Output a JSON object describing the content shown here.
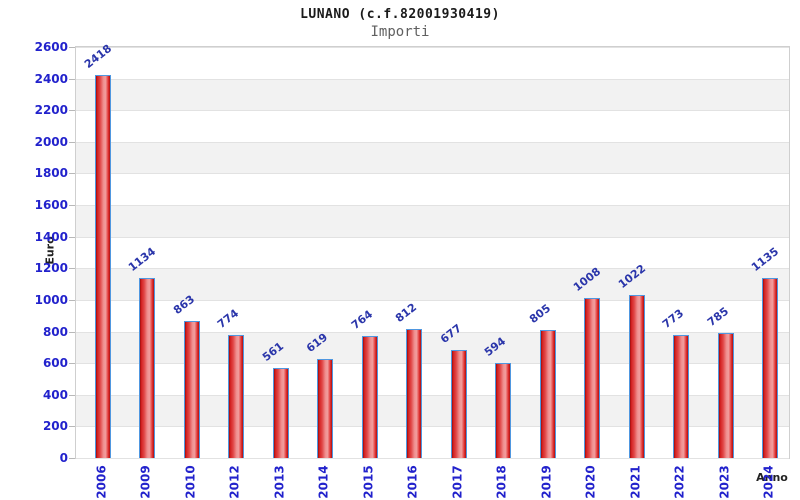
{
  "chart_data": {
    "type": "bar",
    "title": "LUNANO (c.f.82001930419)",
    "subtitle": "Importi",
    "xlabel": "Anno",
    "ylabel": "Euro",
    "categories": [
      "2006",
      "2009",
      "2010",
      "2012",
      "2013",
      "2014",
      "2015",
      "2016",
      "2017",
      "2018",
      "2019",
      "2020",
      "2021",
      "2022",
      "2023",
      "2024"
    ],
    "values": [
      2418,
      1134,
      863,
      774,
      561,
      619,
      764,
      812,
      677,
      594,
      805,
      1008,
      1022,
      773,
      785,
      1135
    ],
    "ylim": [
      0,
      2600
    ],
    "ytick_step": 200,
    "grid": true,
    "legend": false,
    "band_fill_alternating": true,
    "colors": {
      "bar_gradient_dark": "#9c0b0b",
      "bar_gradient_mid": "#e03030",
      "bar_gradient_light": "#f2a0a0",
      "bar_border": "#4f97e0",
      "value_label": "#2a35aa",
      "tick_label": "#2222cc",
      "band": "#f2f2f2",
      "gridline": "#e2e2e2",
      "title": "#1a1a1a",
      "subtitle": "#606060",
      "axis_title": "#222222"
    }
  }
}
